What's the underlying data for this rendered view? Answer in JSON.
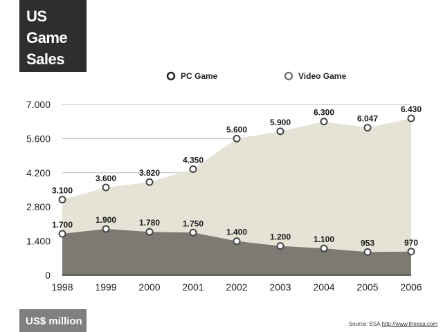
{
  "title_lines": [
    "US",
    "Game",
    "Sales"
  ],
  "unit_label": "US$ million",
  "source": {
    "prefix": "Source: ESA ",
    "link": "http://www.theesa.com"
  },
  "colors": {
    "pc_fill": "#7d7a74",
    "video_fill": "#e5e3d6",
    "marker_stroke": "#444444",
    "grid": "#bbbbbb"
  },
  "chart_data": {
    "type": "area",
    "x": [
      "1998",
      "1999",
      "2000",
      "2001",
      "2002",
      "2003",
      "2004",
      "2005",
      "2006"
    ],
    "y_ticks": [
      "0",
      "1.400",
      "2.800",
      "4.200",
      "5.600",
      "7.000"
    ],
    "ylim": [
      0,
      7000
    ],
    "stacked": false,
    "grid": true,
    "legend": "top",
    "series": [
      {
        "name": "PC Game",
        "values": [
          1700,
          1900,
          1780,
          1750,
          1400,
          1200,
          1100,
          953,
          970
        ],
        "labels": [
          "1.700",
          "1.900",
          "1.780",
          "1.750",
          "1.400",
          "1.200",
          "1.100",
          "953",
          "970"
        ]
      },
      {
        "name": "Video Game",
        "values": [
          3100,
          3600,
          3820,
          4350,
          5600,
          5900,
          6300,
          6047,
          6430
        ],
        "labels": [
          "3.100",
          "3.600",
          "3.820",
          "4.350",
          "5.600",
          "5.900",
          "6.300",
          "6.047",
          "6.430"
        ]
      }
    ]
  }
}
